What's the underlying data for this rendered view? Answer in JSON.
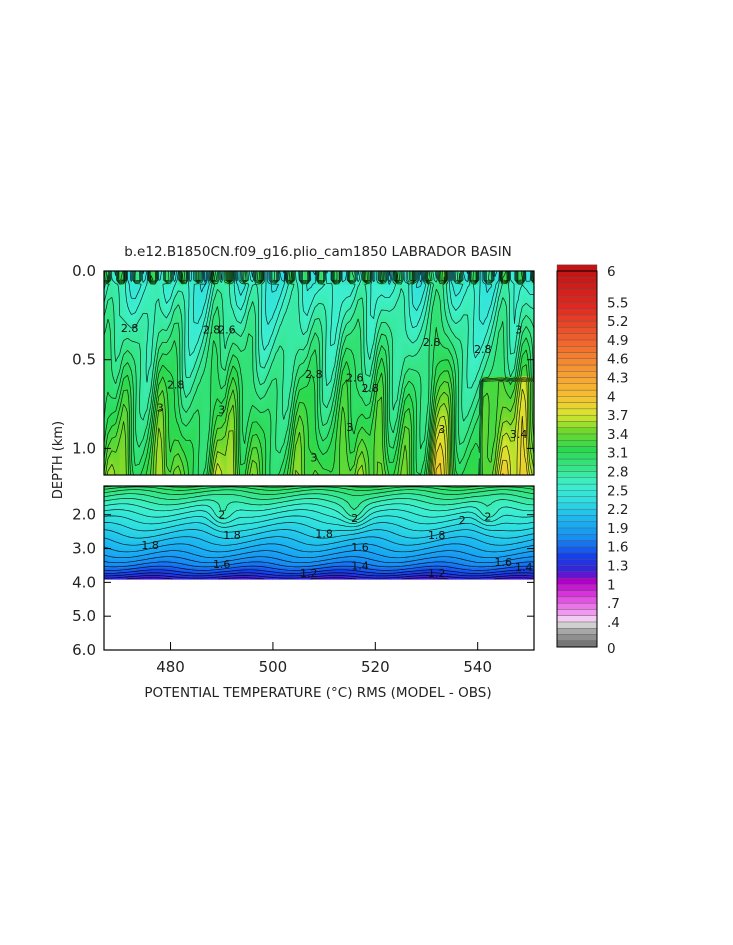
{
  "chart_data": {
    "type": "heatmap",
    "title": "b.e12.B1850CN.f09_g16.plio_cam1850 LABRADOR BASIN",
    "xlabel": "POTENTIAL TEMPERATURE (°C) RMS (MODEL - OBS)",
    "ylabel": "DEPTH (km)",
    "xlim": [
      467,
      551
    ],
    "x_ticks": [
      "480",
      "500",
      "520",
      "540"
    ],
    "x_tick_values": [
      480,
      500,
      520,
      540
    ],
    "upper_panel": {
      "ylim": [
        0.0,
        1.15
      ],
      "y_ticks": [
        "0.0",
        "0.5",
        "1.0"
      ],
      "y_tick_values": [
        0.0,
        0.5,
        1.0
      ]
    },
    "lower_panel": {
      "ylim": [
        1.15,
        6.0
      ],
      "y_ticks": [
        "2.0",
        "3.0",
        "4.0",
        "5.0",
        "6.0"
      ],
      "y_tick_values": [
        2.0,
        3.0,
        4.0,
        5.0,
        6.0
      ],
      "data_bottom_km": 3.9
    },
    "contour_labels": [
      {
        "text": "2.8",
        "x": 472,
        "y": 0.32
      },
      {
        "text": "2.8",
        "x": 488,
        "y": 0.33
      },
      {
        "text": "2.6",
        "x": 491,
        "y": 0.33
      },
      {
        "text": "3",
        "x": 478,
        "y": 0.77
      },
      {
        "text": "3",
        "x": 490,
        "y": 0.78
      },
      {
        "text": "2.8",
        "x": 481,
        "y": 0.64
      },
      {
        "text": "2.8",
        "x": 508,
        "y": 0.58
      },
      {
        "text": "2.6",
        "x": 516,
        "y": 0.6
      },
      {
        "text": "2.8",
        "x": 519,
        "y": 0.66
      },
      {
        "text": "3",
        "x": 508,
        "y": 1.05
      },
      {
        "text": "3",
        "x": 515,
        "y": 0.88
      },
      {
        "text": "2.8",
        "x": 531,
        "y": 0.4
      },
      {
        "text": "2.8",
        "x": 541,
        "y": 0.44
      },
      {
        "text": "3",
        "x": 533,
        "y": 0.89
      },
      {
        "text": "3",
        "x": 548,
        "y": 0.33
      },
      {
        "text": "3.4",
        "x": 548,
        "y": 0.92
      },
      {
        "text": "2",
        "x": 490,
        "y": 2.0
      },
      {
        "text": "2",
        "x": 516,
        "y": 2.1
      },
      {
        "text": "2",
        "x": 537,
        "y": 2.15
      },
      {
        "text": "2",
        "x": 542,
        "y": 2.05
      },
      {
        "text": "1.8",
        "x": 476,
        "y": 2.9
      },
      {
        "text": "1.8",
        "x": 492,
        "y": 2.6
      },
      {
        "text": "1.8",
        "x": 510,
        "y": 2.55
      },
      {
        "text": "1.8",
        "x": 532,
        "y": 2.6
      },
      {
        "text": "1.6",
        "x": 517,
        "y": 2.95
      },
      {
        "text": "1.6",
        "x": 545,
        "y": 3.4
      },
      {
        "text": "1.6",
        "x": 490,
        "y": 3.45
      },
      {
        "text": "1.4",
        "x": 517,
        "y": 3.5
      },
      {
        "text": "1.4",
        "x": 549,
        "y": 3.55
      },
      {
        "text": "1.2",
        "x": 507,
        "y": 3.72
      },
      {
        "text": "1.2",
        "x": 532,
        "y": 3.72
      }
    ],
    "colorbar": {
      "labels": [
        "6",
        "5.5",
        "5.2",
        "4.9",
        "4.6",
        "4.3",
        "4",
        "3.7",
        "3.4",
        "3.1",
        "2.8",
        "2.5",
        "2.2",
        "1.9",
        "1.6",
        "1.3",
        "1",
        ".7",
        ".4",
        "0"
      ],
      "label_values": [
        6,
        5.5,
        5.2,
        4.9,
        4.6,
        4.3,
        4,
        3.7,
        3.4,
        3.1,
        2.8,
        2.5,
        2.2,
        1.9,
        1.6,
        1.3,
        1,
        0.7,
        0.4,
        0
      ],
      "stops": [
        {
          "v": 0.0,
          "c": "#6a6a6a"
        },
        {
          "v": 0.3,
          "c": "#b3b3b3"
        },
        {
          "v": 0.4,
          "c": "#ededed"
        },
        {
          "v": 0.5,
          "c": "#f4a9f4"
        },
        {
          "v": 0.8,
          "c": "#e040e0"
        },
        {
          "v": 1.05,
          "c": "#b000c8"
        },
        {
          "v": 1.2,
          "c": "#3b1fd6"
        },
        {
          "v": 1.45,
          "c": "#1540ee"
        },
        {
          "v": 1.75,
          "c": "#178ef2"
        },
        {
          "v": 2.0,
          "c": "#1ab1f2"
        },
        {
          "v": 2.35,
          "c": "#2fe0e0"
        },
        {
          "v": 2.6,
          "c": "#3ef0cc"
        },
        {
          "v": 2.85,
          "c": "#36e68a"
        },
        {
          "v": 3.15,
          "c": "#2bd94e"
        },
        {
          "v": 3.45,
          "c": "#72d92b"
        },
        {
          "v": 3.7,
          "c": "#d9e62e"
        },
        {
          "v": 4.0,
          "c": "#f7c030"
        },
        {
          "v": 4.4,
          "c": "#f59a33"
        },
        {
          "v": 4.9,
          "c": "#f0612c"
        },
        {
          "v": 5.4,
          "c": "#e22a22"
        },
        {
          "v": 6.0,
          "c": "#c21414"
        }
      ]
    }
  }
}
